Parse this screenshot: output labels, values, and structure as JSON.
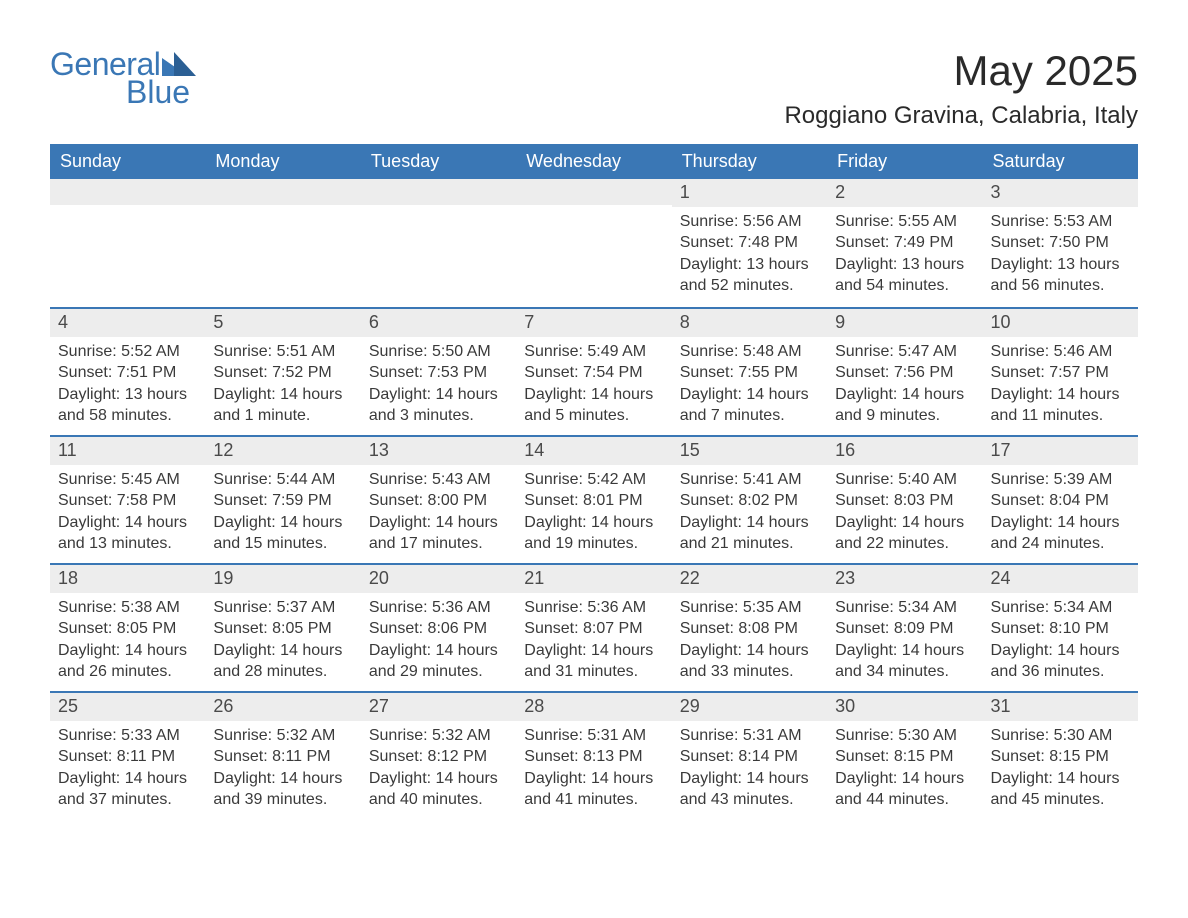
{
  "brand": {
    "general": "General",
    "blue": "Blue",
    "logo_color": "#3a77b5"
  },
  "title": {
    "month": "May 2025",
    "location": "Roggiano Gravina, Calabria, Italy"
  },
  "colors": {
    "header_bg": "#3a77b5",
    "header_text": "#ffffff",
    "daynum_bg": "#ededed",
    "row_border": "#3a77b5",
    "body_text": "#3a3a3a",
    "page_bg": "#ffffff"
  },
  "weekdays": [
    "Sunday",
    "Monday",
    "Tuesday",
    "Wednesday",
    "Thursday",
    "Friday",
    "Saturday"
  ],
  "weeks": [
    [
      {
        "day": "",
        "sunrise": "",
        "sunset": "",
        "daylight": ""
      },
      {
        "day": "",
        "sunrise": "",
        "sunset": "",
        "daylight": ""
      },
      {
        "day": "",
        "sunrise": "",
        "sunset": "",
        "daylight": ""
      },
      {
        "day": "",
        "sunrise": "",
        "sunset": "",
        "daylight": ""
      },
      {
        "day": "1",
        "sunrise": "Sunrise: 5:56 AM",
        "sunset": "Sunset: 7:48 PM",
        "daylight": "Daylight: 13 hours and 52 minutes."
      },
      {
        "day": "2",
        "sunrise": "Sunrise: 5:55 AM",
        "sunset": "Sunset: 7:49 PM",
        "daylight": "Daylight: 13 hours and 54 minutes."
      },
      {
        "day": "3",
        "sunrise": "Sunrise: 5:53 AM",
        "sunset": "Sunset: 7:50 PM",
        "daylight": "Daylight: 13 hours and 56 minutes."
      }
    ],
    [
      {
        "day": "4",
        "sunrise": "Sunrise: 5:52 AM",
        "sunset": "Sunset: 7:51 PM",
        "daylight": "Daylight: 13 hours and 58 minutes."
      },
      {
        "day": "5",
        "sunrise": "Sunrise: 5:51 AM",
        "sunset": "Sunset: 7:52 PM",
        "daylight": "Daylight: 14 hours and 1 minute."
      },
      {
        "day": "6",
        "sunrise": "Sunrise: 5:50 AM",
        "sunset": "Sunset: 7:53 PM",
        "daylight": "Daylight: 14 hours and 3 minutes."
      },
      {
        "day": "7",
        "sunrise": "Sunrise: 5:49 AM",
        "sunset": "Sunset: 7:54 PM",
        "daylight": "Daylight: 14 hours and 5 minutes."
      },
      {
        "day": "8",
        "sunrise": "Sunrise: 5:48 AM",
        "sunset": "Sunset: 7:55 PM",
        "daylight": "Daylight: 14 hours and 7 minutes."
      },
      {
        "day": "9",
        "sunrise": "Sunrise: 5:47 AM",
        "sunset": "Sunset: 7:56 PM",
        "daylight": "Daylight: 14 hours and 9 minutes."
      },
      {
        "day": "10",
        "sunrise": "Sunrise: 5:46 AM",
        "sunset": "Sunset: 7:57 PM",
        "daylight": "Daylight: 14 hours and 11 minutes."
      }
    ],
    [
      {
        "day": "11",
        "sunrise": "Sunrise: 5:45 AM",
        "sunset": "Sunset: 7:58 PM",
        "daylight": "Daylight: 14 hours and 13 minutes."
      },
      {
        "day": "12",
        "sunrise": "Sunrise: 5:44 AM",
        "sunset": "Sunset: 7:59 PM",
        "daylight": "Daylight: 14 hours and 15 minutes."
      },
      {
        "day": "13",
        "sunrise": "Sunrise: 5:43 AM",
        "sunset": "Sunset: 8:00 PM",
        "daylight": "Daylight: 14 hours and 17 minutes."
      },
      {
        "day": "14",
        "sunrise": "Sunrise: 5:42 AM",
        "sunset": "Sunset: 8:01 PM",
        "daylight": "Daylight: 14 hours and 19 minutes."
      },
      {
        "day": "15",
        "sunrise": "Sunrise: 5:41 AM",
        "sunset": "Sunset: 8:02 PM",
        "daylight": "Daylight: 14 hours and 21 minutes."
      },
      {
        "day": "16",
        "sunrise": "Sunrise: 5:40 AM",
        "sunset": "Sunset: 8:03 PM",
        "daylight": "Daylight: 14 hours and 22 minutes."
      },
      {
        "day": "17",
        "sunrise": "Sunrise: 5:39 AM",
        "sunset": "Sunset: 8:04 PM",
        "daylight": "Daylight: 14 hours and 24 minutes."
      }
    ],
    [
      {
        "day": "18",
        "sunrise": "Sunrise: 5:38 AM",
        "sunset": "Sunset: 8:05 PM",
        "daylight": "Daylight: 14 hours and 26 minutes."
      },
      {
        "day": "19",
        "sunrise": "Sunrise: 5:37 AM",
        "sunset": "Sunset: 8:05 PM",
        "daylight": "Daylight: 14 hours and 28 minutes."
      },
      {
        "day": "20",
        "sunrise": "Sunrise: 5:36 AM",
        "sunset": "Sunset: 8:06 PM",
        "daylight": "Daylight: 14 hours and 29 minutes."
      },
      {
        "day": "21",
        "sunrise": "Sunrise: 5:36 AM",
        "sunset": "Sunset: 8:07 PM",
        "daylight": "Daylight: 14 hours and 31 minutes."
      },
      {
        "day": "22",
        "sunrise": "Sunrise: 5:35 AM",
        "sunset": "Sunset: 8:08 PM",
        "daylight": "Daylight: 14 hours and 33 minutes."
      },
      {
        "day": "23",
        "sunrise": "Sunrise: 5:34 AM",
        "sunset": "Sunset: 8:09 PM",
        "daylight": "Daylight: 14 hours and 34 minutes."
      },
      {
        "day": "24",
        "sunrise": "Sunrise: 5:34 AM",
        "sunset": "Sunset: 8:10 PM",
        "daylight": "Daylight: 14 hours and 36 minutes."
      }
    ],
    [
      {
        "day": "25",
        "sunrise": "Sunrise: 5:33 AM",
        "sunset": "Sunset: 8:11 PM",
        "daylight": "Daylight: 14 hours and 37 minutes."
      },
      {
        "day": "26",
        "sunrise": "Sunrise: 5:32 AM",
        "sunset": "Sunset: 8:11 PM",
        "daylight": "Daylight: 14 hours and 39 minutes."
      },
      {
        "day": "27",
        "sunrise": "Sunrise: 5:32 AM",
        "sunset": "Sunset: 8:12 PM",
        "daylight": "Daylight: 14 hours and 40 minutes."
      },
      {
        "day": "28",
        "sunrise": "Sunrise: 5:31 AM",
        "sunset": "Sunset: 8:13 PM",
        "daylight": "Daylight: 14 hours and 41 minutes."
      },
      {
        "day": "29",
        "sunrise": "Sunrise: 5:31 AM",
        "sunset": "Sunset: 8:14 PM",
        "daylight": "Daylight: 14 hours and 43 minutes."
      },
      {
        "day": "30",
        "sunrise": "Sunrise: 5:30 AM",
        "sunset": "Sunset: 8:15 PM",
        "daylight": "Daylight: 14 hours and 44 minutes."
      },
      {
        "day": "31",
        "sunrise": "Sunrise: 5:30 AM",
        "sunset": "Sunset: 8:15 PM",
        "daylight": "Daylight: 14 hours and 45 minutes."
      }
    ]
  ]
}
